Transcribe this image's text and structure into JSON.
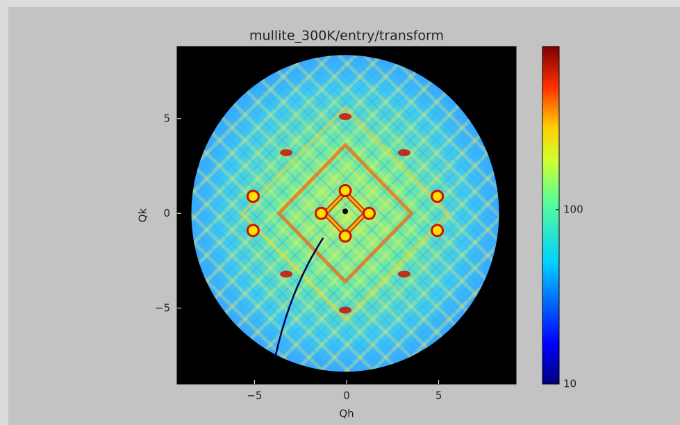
{
  "chart_data": {
    "type": "image",
    "title": "mullite_300K/entry/transform",
    "xlabel": "Qh",
    "ylabel": "Qk",
    "xlim": [
      -9.2,
      9.2
    ],
    "ylim": [
      -9,
      8.8
    ],
    "xticks": [
      {
        "value": -5,
        "label": "−5"
      },
      0,
      5
    ],
    "yticks": [
      {
        "value": -5,
        "label": "−5"
      },
      0,
      5
    ],
    "colorbar": {
      "scale": "log",
      "clim": [
        10,
        860
      ],
      "ticks": [
        10,
        100
      ],
      "colormap": "jet"
    }
  }
}
